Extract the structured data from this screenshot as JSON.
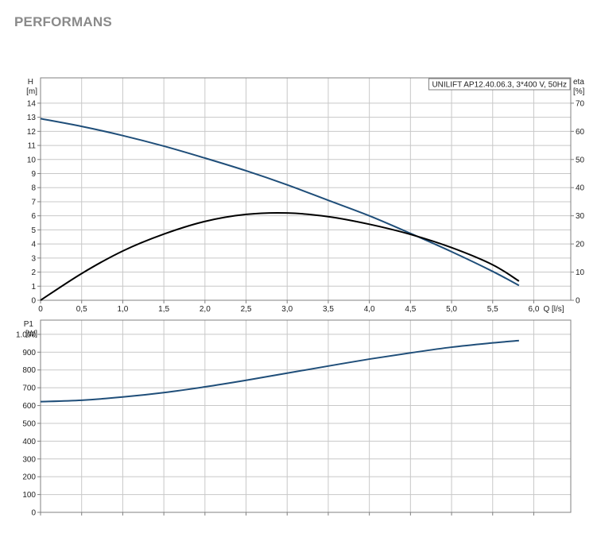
{
  "page": {
    "title": "PERFORMANS"
  },
  "colors": {
    "grid": "#c8c8c8",
    "axis": "#808080",
    "blue": "#1f4e79",
    "black": "#000000"
  },
  "chart_data": [
    {
      "type": "line",
      "legend_box": "UNILIFT AP12.40.06.3, 3*400 V, 50Hz",
      "legend_position": "top-right",
      "grid": true,
      "xlabel": "Q [l/s]",
      "x_ticks": [
        "0",
        "0,5",
        "1,0",
        "1,5",
        "2,0",
        "2,5",
        "3,0",
        "3,5",
        "4,0",
        "4,5",
        "5,0",
        "5,5",
        "6,0"
      ],
      "x_tick_values": [
        0,
        0.5,
        1.0,
        1.5,
        2.0,
        2.5,
        3.0,
        3.5,
        4.0,
        4.5,
        5.0,
        5.5,
        6.0
      ],
      "xlim": [
        0,
        6.45
      ],
      "y_left": {
        "label": "H",
        "unit": "[m]",
        "ylim": [
          0,
          15.8
        ],
        "ticks": [
          "0",
          "1",
          "2",
          "3",
          "4",
          "5",
          "6",
          "7",
          "8",
          "9",
          "10",
          "11",
          "12",
          "13",
          "14"
        ],
        "tick_values": [
          0,
          1,
          2,
          3,
          4,
          5,
          6,
          7,
          8,
          9,
          10,
          11,
          12,
          13,
          14
        ]
      },
      "y_right": {
        "label": "eta",
        "unit": "[%]",
        "ylim": [
          0,
          79
        ],
        "ticks": [
          "0",
          "10",
          "20",
          "30",
          "40",
          "50",
          "60",
          "70"
        ],
        "tick_values": [
          0,
          10,
          20,
          30,
          40,
          50,
          60,
          70
        ]
      },
      "series": [
        {
          "axis": "left",
          "color": "#1f4e79",
          "x": [
            0,
            0.5,
            1.0,
            1.5,
            2.0,
            2.5,
            3.0,
            3.5,
            4.0,
            4.5,
            5.0,
            5.5,
            5.82
          ],
          "y": [
            12.9,
            12.35,
            11.7,
            10.95,
            10.1,
            9.2,
            8.2,
            7.1,
            6.0,
            4.75,
            3.45,
            2.05,
            1.05
          ]
        },
        {
          "axis": "right",
          "color": "#000000",
          "x": [
            0,
            0.5,
            1.0,
            1.5,
            2.0,
            2.5,
            3.0,
            3.5,
            4.0,
            4.5,
            5.0,
            5.5,
            5.82
          ],
          "y": [
            0,
            9.5,
            17.5,
            23.5,
            28.0,
            30.5,
            31.0,
            29.7,
            27.0,
            23.4,
            18.7,
            12.6,
            6.8
          ]
        }
      ]
    },
    {
      "type": "line",
      "grid": true,
      "xlim": [
        0,
        6.45
      ],
      "y_left": {
        "label": "P1",
        "unit": "[W]",
        "ylim": [
          0,
          1080
        ],
        "ticks": [
          "0",
          "100",
          "200",
          "300",
          "400",
          "500",
          "600",
          "700",
          "800",
          "900",
          "1.000"
        ],
        "tick_values": [
          0,
          100,
          200,
          300,
          400,
          500,
          600,
          700,
          800,
          900,
          1000
        ]
      },
      "series": [
        {
          "axis": "left",
          "color": "#1f4e79",
          "x": [
            0,
            0.5,
            1.0,
            1.5,
            2.0,
            2.5,
            3.0,
            3.5,
            4.0,
            4.5,
            5.0,
            5.5,
            5.82
          ],
          "y": [
            622,
            630,
            648,
            673,
            705,
            742,
            782,
            822,
            861,
            896,
            928,
            952,
            965
          ]
        }
      ]
    }
  ]
}
